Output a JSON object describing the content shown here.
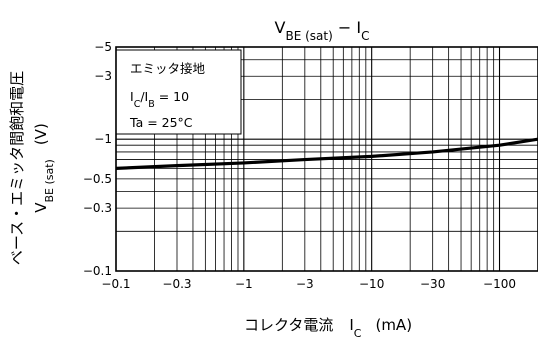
{
  "chart_data": {
    "type": "line",
    "title": {
      "main": "V",
      "main_sub": "BE (sat)",
      "sep": " − I",
      "tail_sub": "C"
    },
    "xlabel": {
      "main": "コレクタ電流",
      "sym": "I",
      "sym_sub": "C",
      "unit": "(mA)"
    },
    "ylabel": {
      "line1": "ベース・エミッタ間飽和電圧",
      "sym": "V",
      "sym_sub": "BE (sat)",
      "unit": "(V)"
    },
    "x_scale": "log",
    "y_scale": "log",
    "xlim": [
      -0.1,
      -200
    ],
    "ylim": [
      -0.1,
      -5
    ],
    "x_ticks": [
      -0.1,
      -0.3,
      -1,
      -3,
      -10,
      -30,
      -100
    ],
    "x_tick_labels": [
      "−0.1",
      "−0.3",
      "−1",
      "−3",
      "−10",
      "−30",
      "−100"
    ],
    "y_ticks": [
      -0.1,
      -0.3,
      -0.5,
      -1,
      -3,
      -5
    ],
    "y_tick_labels": [
      "−0.1",
      "−0.3",
      "−0.5",
      "−1",
      "−3",
      "−5"
    ],
    "grid": true,
    "series": [
      {
        "x": [
          -0.1,
          -0.3,
          -1,
          -3,
          -10,
          -30,
          -100,
          -200
        ],
        "y": [
          -0.6,
          -0.63,
          -0.66,
          -0.7,
          -0.74,
          -0.8,
          -0.9,
          -1.0
        ]
      }
    ],
    "annotations": {
      "line1": "エミッタ接地",
      "line2_sym": "I",
      "line2_sub1": "C",
      "line2_mid": "/I",
      "line2_sub2": "B",
      "line2_val": " = 10",
      "line3": "Ta = 25°C"
    },
    "colors": {
      "line": "#000000",
      "grid": "#000000",
      "background": "#ffffff"
    }
  }
}
